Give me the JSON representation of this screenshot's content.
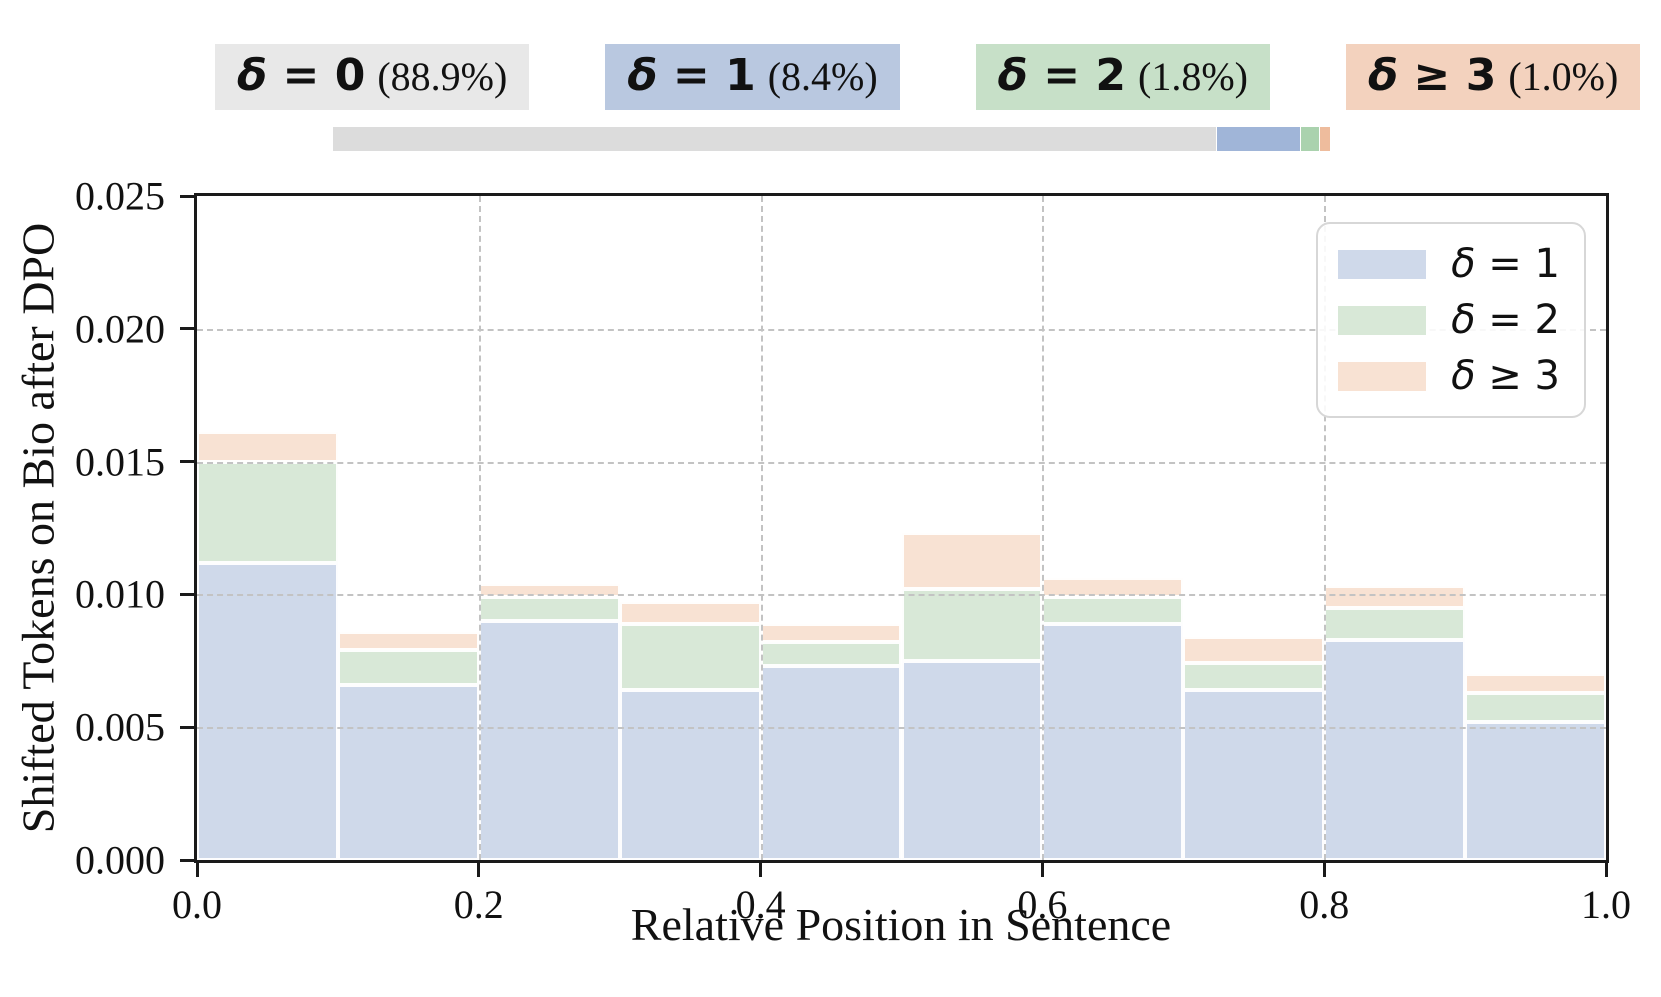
{
  "header": {
    "badges": [
      {
        "expr": "δ = 0",
        "pct": "(88.9%)",
        "bg": "#e8e8e8"
      },
      {
        "expr": "δ = 1",
        "pct": "(8.4%)",
        "bg": "#b9c8e0"
      },
      {
        "expr": "δ = 2",
        "pct": "(1.8%)",
        "bg": "#c7e0c8"
      },
      {
        "expr": "δ ≥ 3",
        "pct": "(1.0%)",
        "bg": "#f3d2be"
      }
    ],
    "proportion_bar": {
      "segments": [
        {
          "label": "δ = 0",
          "fraction": 0.889,
          "color": "#dcdcdc"
        },
        {
          "label": "δ = 1",
          "fraction": 0.084,
          "color": "#a0b5d8"
        },
        {
          "label": "δ = 2",
          "fraction": 0.018,
          "color": "#aad2ae"
        },
        {
          "label": "δ ≥ 3",
          "fraction": 0.01,
          "color": "#eebc9d"
        }
      ]
    }
  },
  "chart_data": {
    "type": "bar",
    "stacked": true,
    "title": "",
    "xlabel": "Relative Position in Sentence",
    "ylabel": "Shifted Tokens on Bio after DPO",
    "xlim": [
      0.0,
      1.0
    ],
    "ylim": [
      0.0,
      0.025
    ],
    "grid": "dashed",
    "bin_width": 0.1,
    "bin_edges": [
      0.0,
      0.1,
      0.2,
      0.3,
      0.4,
      0.5,
      0.6,
      0.7,
      0.8,
      0.9,
      1.0
    ],
    "x_ticks": [
      {
        "value": 0.0,
        "label": "0.0"
      },
      {
        "value": 0.2,
        "label": "0.2"
      },
      {
        "value": 0.4,
        "label": "0.4"
      },
      {
        "value": 0.6,
        "label": "0.6"
      },
      {
        "value": 0.8,
        "label": "0.8"
      },
      {
        "value": 1.0,
        "label": "1.0"
      }
    ],
    "y_ticks": [
      {
        "value": 0.0,
        "label": "0.000"
      },
      {
        "value": 0.005,
        "label": "0.005"
      },
      {
        "value": 0.01,
        "label": "0.010"
      },
      {
        "value": 0.015,
        "label": "0.015"
      },
      {
        "value": 0.02,
        "label": "0.020"
      },
      {
        "value": 0.025,
        "label": "0.025"
      }
    ],
    "series": [
      {
        "name": "δ = 1",
        "color": "#cfd9ea",
        "values": [
          0.0112,
          0.0066,
          0.009,
          0.0064,
          0.0073,
          0.0075,
          0.0089,
          0.0064,
          0.0083,
          0.0052
        ]
      },
      {
        "name": "δ = 2",
        "color": "#d8e8d7",
        "values": [
          0.0038,
          0.0013,
          0.0009,
          0.0025,
          0.0009,
          0.0027,
          0.001,
          0.001,
          0.0012,
          0.0011
        ]
      },
      {
        "name": "δ ≥ 3",
        "color": "#f8e2d3",
        "values": [
          0.0011,
          0.0007,
          0.0005,
          0.0008,
          0.0007,
          0.0021,
          0.0007,
          0.001,
          0.0008,
          0.0007
        ]
      }
    ],
    "legend": {
      "position": "upper right",
      "entries": [
        "δ = 1",
        "δ = 2",
        "δ ≥ 3"
      ]
    }
  }
}
